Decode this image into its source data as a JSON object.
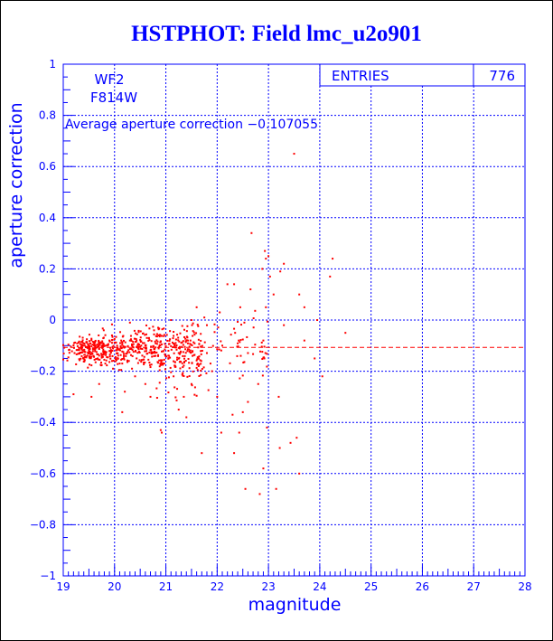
{
  "title": "HSTPHOT: Field lmc_u2o901",
  "colors": {
    "axis": "#0000ff",
    "points": "#ff0000",
    "avgline": "#ff0000",
    "title": "#0000ff"
  },
  "chart_data": {
    "type": "scatter",
    "xlabel": "magnitude",
    "ylabel": "aperture correction",
    "xlim": [
      19,
      28
    ],
    "ylim": [
      -1,
      1
    ],
    "xticks": [
      19,
      20,
      21,
      22,
      23,
      24,
      25,
      26,
      27,
      28
    ],
    "yticks": [
      -1,
      -0.8,
      -0.6,
      -0.4,
      -0.2,
      0,
      0.2,
      0.4,
      0.6,
      0.8,
      1
    ],
    "ytick_labels": [
      "−1",
      "−0.8",
      "−0.6",
      "−0.4",
      "−0.2",
      "0",
      "0.2",
      "0.4",
      "0.6",
      "0.8",
      "1"
    ],
    "grid": true,
    "stats": {
      "entries_label": "ENTRIES",
      "entries_value": "776"
    },
    "annotations": {
      "camera": "WF2",
      "filter": "F814W",
      "average_text": "Average aperture correction −0.107055"
    },
    "average_line": -0.107055,
    "points_generated_from_distribution": true,
    "points": [
      [
        22.67,
        0.34
      ],
      [
        22.93,
        0.27
      ],
      [
        23.0,
        0.25
      ],
      [
        22.95,
        0.24
      ],
      [
        22.88,
        0.2
      ],
      [
        23.03,
        0.17
      ],
      [
        23.23,
        0.19
      ],
      [
        23.5,
        0.65
      ],
      [
        23.3,
        0.22
      ],
      [
        24.25,
        0.24
      ],
      [
        24.2,
        0.17
      ],
      [
        23.1,
        0.1
      ],
      [
        22.95,
        0.05
      ],
      [
        23.6,
        0.1
      ],
      [
        23.3,
        -0.02
      ],
      [
        24.05,
        -0.22
      ],
      [
        23.43,
        -0.48
      ],
      [
        23.55,
        -0.46
      ],
      [
        23.6,
        -0.6
      ],
      [
        23.22,
        -0.5
      ],
      [
        23.2,
        -0.3
      ],
      [
        22.97,
        -0.42
      ],
      [
        22.9,
        -0.58
      ],
      [
        23.15,
        -0.66
      ],
      [
        22.83,
        -0.68
      ],
      [
        22.55,
        -0.66
      ],
      [
        22.43,
        -0.44
      ],
      [
        22.33,
        -0.52
      ],
      [
        22.3,
        -0.37
      ],
      [
        22.08,
        -0.44
      ],
      [
        21.7,
        -0.52
      ],
      [
        20.9,
        -0.43
      ],
      [
        20.92,
        -0.44
      ],
      [
        22.33,
        0.14
      ],
      [
        22.2,
        0.14
      ],
      [
        22.45,
        0.05
      ],
      [
        22.53,
        -0.01
      ],
      [
        22.35,
        -0.05
      ],
      [
        22.1,
        -0.1
      ],
      [
        21.8,
        -0.02
      ],
      [
        21.6,
        0.05
      ],
      [
        21.9,
        -0.2
      ],
      [
        22.8,
        -0.25
      ],
      [
        22.6,
        -0.32
      ],
      [
        22.5,
        -0.36
      ],
      [
        22.65,
        0.12
      ],
      [
        21.5,
        -0.25
      ],
      [
        21.35,
        -0.3
      ],
      [
        21.25,
        -0.35
      ],
      [
        21.4,
        -0.38
      ],
      [
        20.7,
        -0.3
      ],
      [
        20.6,
        -0.25
      ],
      [
        20.2,
        -0.28
      ],
      [
        20.15,
        -0.36
      ],
      [
        19.55,
        -0.3
      ],
      [
        19.2,
        -0.29
      ],
      [
        19.95,
        -0.06
      ],
      [
        20.3,
        -0.01
      ],
      [
        20.85,
        -0.03
      ],
      [
        21.1,
        0.0
      ],
      [
        21.5,
        0.0
      ],
      [
        21.75,
        0.01
      ],
      [
        22.05,
        0.03
      ],
      [
        22.0,
        -0.3
      ],
      [
        21.15,
        -0.22
      ],
      [
        20.4,
        -0.22
      ],
      [
        19.7,
        -0.25
      ],
      [
        23.9,
        -0.15
      ],
      [
        23.7,
        -0.08
      ],
      [
        24.5,
        -0.05
      ],
      [
        23.95,
        0.0
      ],
      [
        23.7,
        0.05
      ]
    ]
  }
}
